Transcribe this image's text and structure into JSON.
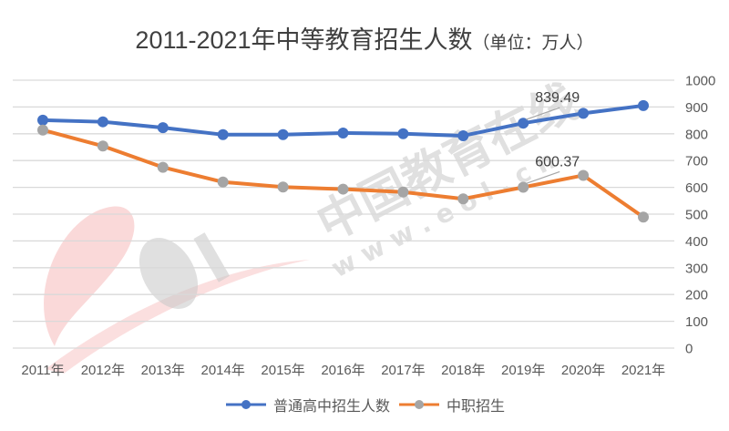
{
  "title": {
    "main": "2011-2021年中等教育招生人数",
    "unit": "（单位：万人）"
  },
  "watermark": {
    "logo": "eol",
    "text": "中国教育在线",
    "url": "w w w . e o l . c n"
  },
  "legend": [
    {
      "name": "普通高中招生人数",
      "line_color": "#4472C4",
      "marker_color": "#4472C4"
    },
    {
      "name": "中职招生",
      "line_color": "#ED7D31",
      "marker_color": "#A5A5A5"
    }
  ],
  "chart_data": {
    "type": "line",
    "title": "2011-2021年中等教育招生人数（单位：万人）",
    "xlabel": "",
    "ylabel": "",
    "categories": [
      "2011年",
      "2012年",
      "2013年",
      "2014年",
      "2015年",
      "2016年",
      "2017年",
      "2018年",
      "2019年",
      "2020年",
      "2021年"
    ],
    "series": [
      {
        "name": "普通高中招生人数",
        "color": "#4472C4",
        "marker_color": "#4472C4",
        "values": [
          850.8,
          844.6,
          822.7,
          796.6,
          796.6,
          802.9,
          800.1,
          792.7,
          839.49,
          876.4,
          905.0
        ]
      },
      {
        "name": "中职招生",
        "color": "#ED7D31",
        "marker_color": "#A5A5A5",
        "values": [
          813.9,
          754.1,
          674.8,
          619.8,
          601.2,
          593.3,
          582.4,
          557.1,
          600.37,
          644.7,
          489.0
        ]
      }
    ],
    "annotations": [
      {
        "series": "普通高中招生人数",
        "category": "2019年",
        "label": "839.49"
      },
      {
        "series": "中职招生",
        "category": "2019年",
        "label": "600.37"
      }
    ],
    "yticks": [
      0,
      100,
      200,
      300,
      400,
      500,
      600,
      700,
      800,
      900,
      1000
    ],
    "ylim": [
      0,
      1000
    ],
    "y_axis_position": "right",
    "grid": true,
    "legend_position": "bottom"
  }
}
